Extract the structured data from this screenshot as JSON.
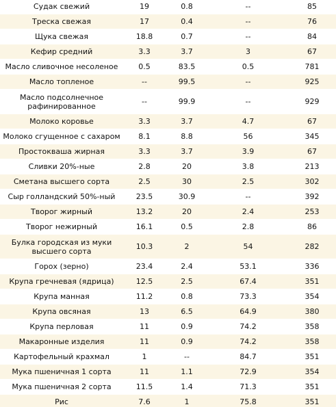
{
  "rows": [
    {
      "name": "Судак свежий",
      "protein": "19",
      "fat": "0.8",
      "carbs": "--",
      "kcal": "85"
    },
    {
      "name": "Треска свежая",
      "protein": "17",
      "fat": "0.4",
      "carbs": "--",
      "kcal": "76"
    },
    {
      "name": "Щука свежая",
      "protein": "18.8",
      "fat": "0.7",
      "carbs": "--",
      "kcal": "84"
    },
    {
      "name": "Кефир средний",
      "protein": "3.3",
      "fat": "3.7",
      "carbs": "3",
      "kcal": "67"
    },
    {
      "name": "Масло сливочное несоленое",
      "protein": "0.5",
      "fat": "83.5",
      "carbs": "0.5",
      "kcal": "781"
    },
    {
      "name": "Масло топленое",
      "protein": "--",
      "fat": "99.5",
      "carbs": "--",
      "kcal": "925"
    },
    {
      "name": "Масло подсолнечное рафинированное",
      "protein": "--",
      "fat": "99.9",
      "carbs": "--",
      "kcal": "929"
    },
    {
      "name": "Молоко коровье",
      "protein": "3.3",
      "fat": "3.7",
      "carbs": "4.7",
      "kcal": "67"
    },
    {
      "name": "Молоко сгущенное с сахаром",
      "protein": "8.1",
      "fat": "8.8",
      "carbs": "56",
      "kcal": "345"
    },
    {
      "name": "Простокваша жирная",
      "protein": "3.3",
      "fat": "3.7",
      "carbs": "3.9",
      "kcal": "67"
    },
    {
      "name": "Сливки 20%-ные",
      "protein": "2.8",
      "fat": "20",
      "carbs": "3.8",
      "kcal": "213"
    },
    {
      "name": "Сметана высшего сорта",
      "protein": "2.5",
      "fat": "30",
      "carbs": "2.5",
      "kcal": "302"
    },
    {
      "name": "Сыр голландский 50%-ный",
      "protein": "23.5",
      "fat": "30.9",
      "carbs": "--",
      "kcal": "392"
    },
    {
      "name": "Творог жирный",
      "protein": "13.2",
      "fat": "20",
      "carbs": "2.4",
      "kcal": "253"
    },
    {
      "name": "Творог нежирный",
      "protein": "16.1",
      "fat": "0.5",
      "carbs": "2.8",
      "kcal": "86"
    },
    {
      "name": "Булка городская из муки высшего сорта",
      "protein": "10.3",
      "fat": "2",
      "carbs": "54",
      "kcal": "282"
    },
    {
      "name": "Горох (зерно)",
      "protein": "23.4",
      "fat": "2.4",
      "carbs": "53.1",
      "kcal": "336"
    },
    {
      "name": "Крупа гречневая (ядрица)",
      "protein": "12.5",
      "fat": "2.5",
      "carbs": "67.4",
      "kcal": "351"
    },
    {
      "name": "Крупа манная",
      "protein": "11.2",
      "fat": "0.8",
      "carbs": "73.3",
      "kcal": "354"
    },
    {
      "name": "Крупа овсяная",
      "protein": "13",
      "fat": "6.5",
      "carbs": "64.9",
      "kcal": "380"
    },
    {
      "name": "Крупа перловая",
      "protein": "11",
      "fat": "0.9",
      "carbs": "74.2",
      "kcal": "358"
    },
    {
      "name": "Макаронные изделия",
      "protein": "11",
      "fat": "0.9",
      "carbs": "74.2",
      "kcal": "358"
    },
    {
      "name": "Картофельный крахмал",
      "protein": "1",
      "fat": "--",
      "carbs": "84.7",
      "kcal": "351"
    },
    {
      "name": "Мука пшеничная 1 сорта",
      "protein": "11",
      "fat": "1.1",
      "carbs": "72.9",
      "kcal": "354"
    },
    {
      "name": "Мука пшеничная 2 сорта",
      "protein": "11.5",
      "fat": "1.4",
      "carbs": "71.3",
      "kcal": "351"
    },
    {
      "name": "Рис",
      "protein": "7.6",
      "fat": "1",
      "carbs": "75.8",
      "kcal": "351"
    }
  ]
}
